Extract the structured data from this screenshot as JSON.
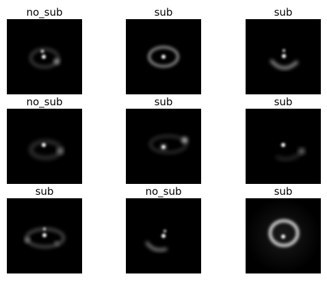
{
  "grid": [
    {
      "title": "no_sub",
      "kind": "ring-arcs"
    },
    {
      "title": "sub",
      "kind": "ring-full"
    },
    {
      "title": "sub",
      "kind": "lower-arc"
    },
    {
      "title": "no_sub",
      "kind": "ring-faint-right-knot"
    },
    {
      "title": "sub",
      "kind": "two-blobs"
    },
    {
      "title": "sub",
      "kind": "faint-right-knot"
    },
    {
      "title": "sub",
      "kind": "ring-lower"
    },
    {
      "title": "no_sub",
      "kind": "lower-left-arc"
    },
    {
      "title": "sub",
      "kind": "bright-ring"
    }
  ]
}
